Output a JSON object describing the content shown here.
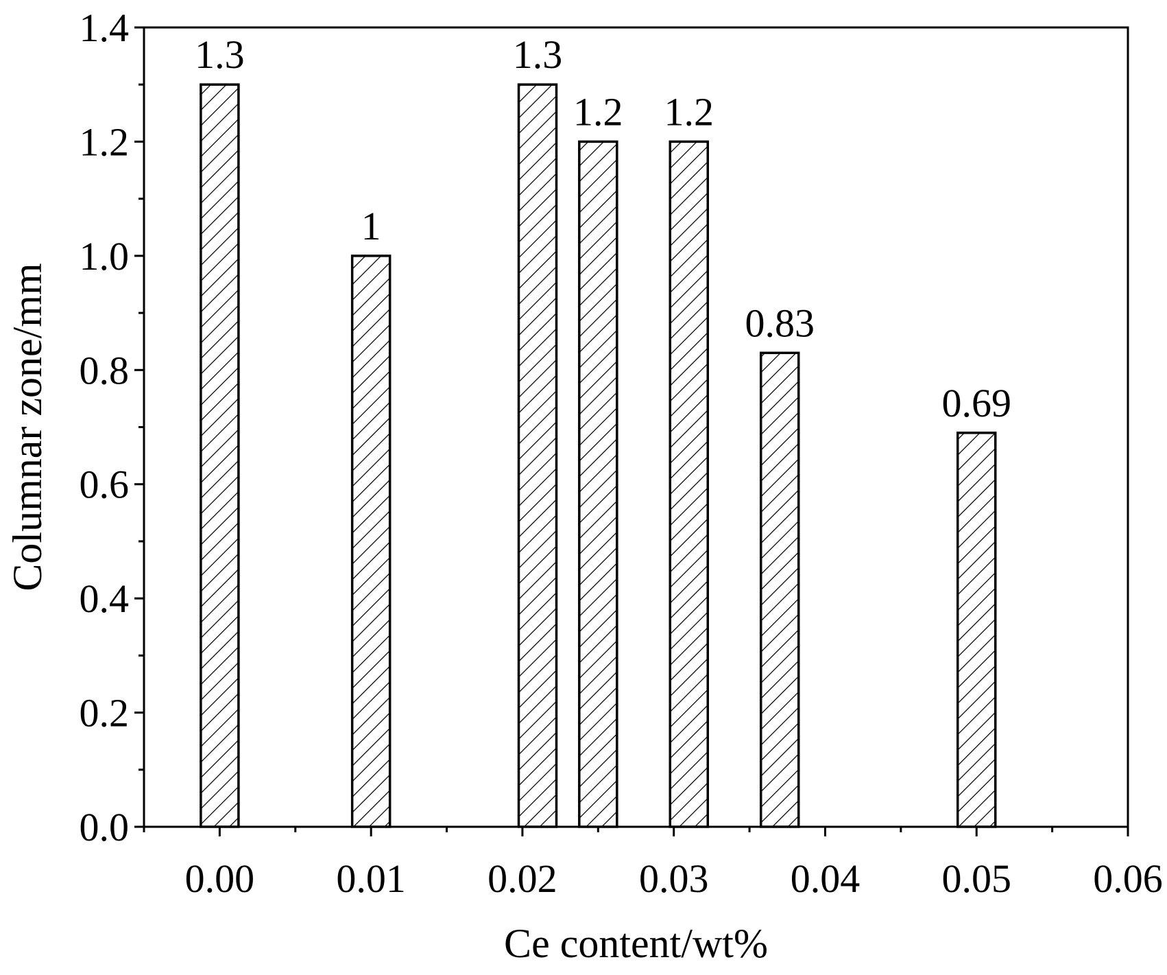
{
  "chart_data": {
    "type": "bar",
    "x": [
      0.0,
      0.01,
      0.021,
      0.025,
      0.031,
      0.037,
      0.05
    ],
    "values": [
      1.3,
      1.0,
      1.3,
      1.2,
      1.2,
      0.83,
      0.69
    ],
    "data_labels": [
      "1.3",
      "1",
      "1.3",
      "1.2",
      "1.2",
      "0.83",
      "0.69"
    ],
    "xlabel": "Ce content/wt%",
    "ylabel": "Columnar zone/mm",
    "xlim": [
      -0.005,
      0.06
    ],
    "ylim": [
      0.0,
      1.4
    ],
    "x_ticks": [
      "0.00",
      "0.01",
      "0.02",
      "0.03",
      "0.04",
      "0.05",
      "0.06"
    ],
    "y_ticks": [
      "0.0",
      "0.2",
      "0.4",
      "0.6",
      "0.8",
      "1.0",
      "1.2",
      "1.4"
    ],
    "bar_fill": "diagonal-hatch",
    "colors": {
      "stroke": "#000000",
      "background": "#ffffff"
    },
    "grid": false,
    "legend": "none"
  }
}
